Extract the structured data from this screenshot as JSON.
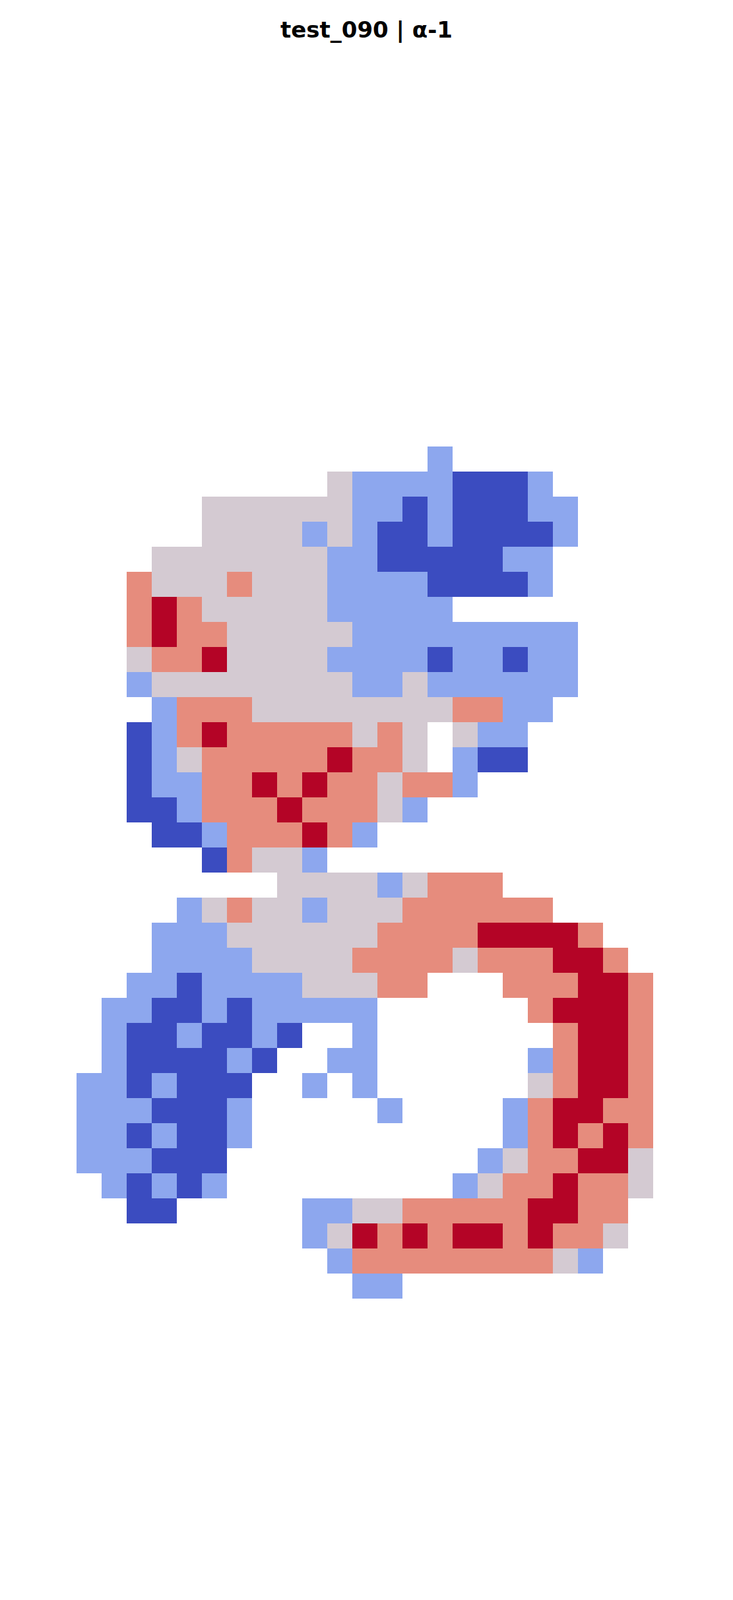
{
  "chart_data": {
    "type": "heatmap",
    "title": "test_090 | α-1",
    "tick_labels": false,
    "cells": [
      [
        null,
        null,
        null,
        null,
        null,
        null,
        null,
        null,
        null,
        null,
        null,
        null,
        null,
        null,
        1,
        null,
        null,
        null,
        null,
        null,
        null,
        null,
        null,
        null
      ],
      [
        null,
        null,
        null,
        null,
        null,
        null,
        null,
        null,
        null,
        null,
        2,
        1,
        1,
        1,
        1,
        0,
        0,
        0,
        1,
        null,
        null,
        null,
        null,
        null
      ],
      [
        null,
        null,
        null,
        null,
        null,
        2,
        2,
        2,
        2,
        2,
        2,
        1,
        1,
        0,
        1,
        0,
        0,
        0,
        1,
        1,
        null,
        null,
        null,
        null
      ],
      [
        null,
        null,
        null,
        null,
        null,
        2,
        2,
        2,
        2,
        1,
        2,
        1,
        0,
        0,
        1,
        0,
        0,
        0,
        0,
        1,
        null,
        null,
        null,
        null
      ],
      [
        null,
        null,
        null,
        2,
        2,
        2,
        2,
        2,
        2,
        2,
        1,
        1,
        0,
        0,
        0,
        0,
        0,
        1,
        1,
        null,
        null,
        null,
        null,
        null
      ],
      [
        null,
        null,
        3,
        2,
        2,
        2,
        3,
        2,
        2,
        2,
        1,
        1,
        1,
        1,
        0,
        0,
        0,
        0,
        1,
        null,
        null,
        null,
        null,
        null
      ],
      [
        null,
        null,
        3,
        4,
        3,
        2,
        2,
        2,
        2,
        2,
        1,
        1,
        1,
        1,
        1,
        null,
        null,
        null,
        null,
        null,
        null,
        null,
        null,
        null
      ],
      [
        null,
        null,
        3,
        4,
        3,
        3,
        2,
        2,
        2,
        2,
        2,
        1,
        1,
        1,
        1,
        1,
        1,
        1,
        1,
        1,
        null,
        null,
        null,
        null
      ],
      [
        null,
        null,
        2,
        3,
        3,
        4,
        2,
        2,
        2,
        2,
        1,
        1,
        1,
        1,
        0,
        1,
        1,
        0,
        1,
        1,
        null,
        null,
        null,
        null
      ],
      [
        null,
        null,
        1,
        2,
        2,
        2,
        2,
        2,
        2,
        2,
        2,
        1,
        1,
        2,
        1,
        1,
        1,
        1,
        1,
        1,
        null,
        null,
        null,
        null
      ],
      [
        null,
        null,
        null,
        1,
        3,
        3,
        3,
        2,
        2,
        2,
        2,
        2,
        2,
        2,
        2,
        3,
        3,
        1,
        1,
        null,
        null,
        null,
        null,
        null
      ],
      [
        null,
        null,
        0,
        1,
        3,
        4,
        3,
        3,
        3,
        3,
        3,
        2,
        3,
        2,
        null,
        2,
        1,
        1,
        null,
        null,
        null,
        null,
        null,
        null
      ],
      [
        null,
        null,
        0,
        1,
        2,
        3,
        3,
        3,
        3,
        3,
        4,
        3,
        3,
        2,
        null,
        1,
        0,
        0,
        null,
        null,
        null,
        null,
        null,
        null
      ],
      [
        null,
        null,
        0,
        1,
        1,
        3,
        3,
        4,
        3,
        4,
        3,
        3,
        2,
        3,
        3,
        1,
        null,
        null,
        null,
        null,
        null,
        null,
        null,
        null
      ],
      [
        null,
        null,
        0,
        0,
        1,
        3,
        3,
        3,
        4,
        3,
        3,
        3,
        2,
        1,
        null,
        null,
        null,
        null,
        null,
        null,
        null,
        null,
        null,
        null
      ],
      [
        null,
        null,
        null,
        0,
        0,
        1,
        3,
        3,
        3,
        4,
        3,
        1,
        null,
        null,
        null,
        null,
        null,
        null,
        null,
        null,
        null,
        null,
        null,
        null
      ],
      [
        null,
        null,
        null,
        null,
        null,
        0,
        3,
        2,
        2,
        1,
        null,
        null,
        null,
        null,
        null,
        null,
        null,
        null,
        null,
        null,
        null,
        null,
        null,
        null
      ],
      [
        null,
        null,
        null,
        null,
        null,
        null,
        null,
        null,
        2,
        2,
        2,
        2,
        1,
        2,
        3,
        3,
        3,
        null,
        null,
        null,
        null,
        null,
        null,
        null
      ],
      [
        null,
        null,
        null,
        null,
        1,
        2,
        3,
        2,
        2,
        1,
        2,
        2,
        2,
        3,
        3,
        3,
        3,
        3,
        3,
        null,
        null,
        null,
        null,
        null
      ],
      [
        null,
        null,
        null,
        1,
        1,
        1,
        2,
        2,
        2,
        2,
        2,
        2,
        3,
        3,
        3,
        3,
        4,
        4,
        4,
        4,
        3,
        null,
        null,
        null
      ],
      [
        null,
        null,
        null,
        1,
        1,
        1,
        1,
        2,
        2,
        2,
        2,
        3,
        3,
        3,
        3,
        2,
        3,
        3,
        3,
        4,
        4,
        3,
        null,
        null
      ],
      [
        null,
        null,
        1,
        1,
        0,
        1,
        1,
        1,
        1,
        2,
        2,
        2,
        3,
        3,
        null,
        null,
        null,
        3,
        3,
        3,
        4,
        4,
        3,
        null
      ],
      [
        null,
        1,
        1,
        0,
        0,
        1,
        0,
        1,
        1,
        1,
        1,
        1,
        null,
        null,
        null,
        null,
        null,
        null,
        3,
        4,
        4,
        4,
        3,
        null
      ],
      [
        null,
        1,
        0,
        0,
        1,
        0,
        0,
        1,
        0,
        null,
        null,
        1,
        null,
        null,
        null,
        null,
        null,
        null,
        null,
        3,
        4,
        4,
        3,
        null
      ],
      [
        null,
        1,
        0,
        0,
        0,
        0,
        1,
        0,
        null,
        null,
        1,
        1,
        null,
        null,
        null,
        null,
        null,
        null,
        1,
        3,
        4,
        4,
        3,
        null
      ],
      [
        1,
        1,
        0,
        1,
        0,
        0,
        0,
        null,
        null,
        1,
        null,
        1,
        null,
        null,
        null,
        null,
        null,
        null,
        2,
        3,
        4,
        4,
        3,
        null
      ],
      [
        1,
        1,
        1,
        0,
        0,
        0,
        1,
        null,
        null,
        null,
        null,
        null,
        1,
        null,
        null,
        null,
        null,
        1,
        3,
        4,
        4,
        3,
        3,
        null
      ],
      [
        1,
        1,
        0,
        1,
        0,
        0,
        1,
        null,
        null,
        null,
        null,
        null,
        null,
        null,
        null,
        null,
        null,
        1,
        3,
        4,
        3,
        4,
        3,
        null
      ],
      [
        1,
        1,
        1,
        0,
        0,
        0,
        null,
        null,
        null,
        null,
        null,
        null,
        null,
        null,
        null,
        null,
        1,
        2,
        3,
        3,
        4,
        4,
        2,
        null
      ],
      [
        null,
        1,
        0,
        1,
        0,
        1,
        null,
        null,
        null,
        null,
        null,
        null,
        null,
        null,
        null,
        1,
        2,
        3,
        3,
        4,
        3,
        3,
        2,
        null
      ],
      [
        null,
        null,
        0,
        0,
        null,
        null,
        null,
        null,
        null,
        1,
        1,
        2,
        2,
        3,
        3,
        3,
        3,
        3,
        4,
        4,
        3,
        3,
        null,
        null
      ],
      [
        null,
        null,
        null,
        null,
        null,
        null,
        null,
        null,
        null,
        1,
        2,
        4,
        3,
        4,
        3,
        4,
        4,
        3,
        4,
        3,
        3,
        2,
        null,
        null
      ],
      [
        null,
        null,
        null,
        null,
        null,
        null,
        null,
        null,
        null,
        null,
        1,
        3,
        3,
        3,
        3,
        3,
        3,
        3,
        3,
        2,
        1,
        null,
        null,
        null
      ],
      [
        null,
        null,
        null,
        null,
        null,
        null,
        null,
        null,
        null,
        null,
        null,
        1,
        1,
        null,
        null,
        null,
        null,
        null,
        null,
        null,
        null,
        null,
        null,
        null
      ]
    ]
  }
}
